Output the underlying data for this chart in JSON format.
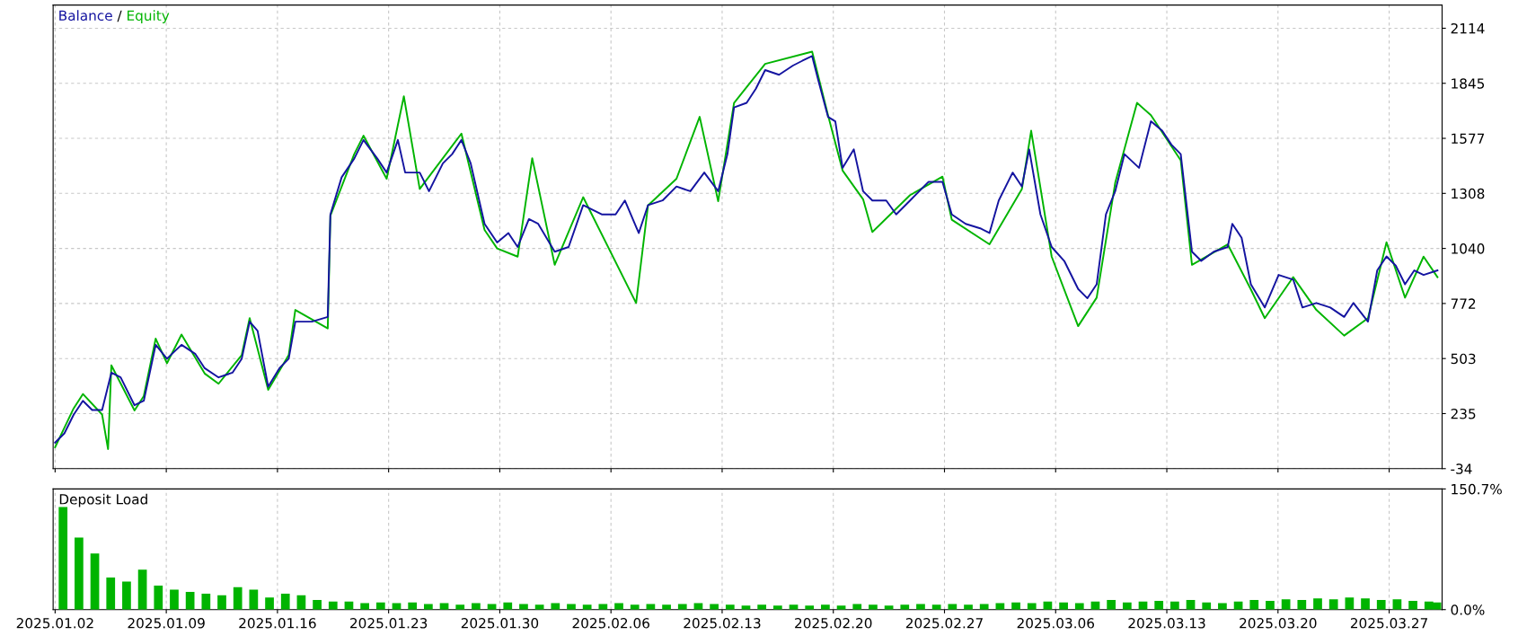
{
  "chart_data": [
    {
      "type": "line",
      "legend": "top left",
      "grid": true,
      "tick_labels": "y",
      "annotations": [
        "/"
      ],
      "xlim": [
        "2025-01-01T21:00",
        "2025-03-30T08:00"
      ],
      "xticks": [
        {
          "value": "2025-01-02",
          "label": null
        },
        {
          "value": "2025-01-09",
          "label": null
        },
        {
          "value": "2025-01-16",
          "label": null
        },
        {
          "value": "2025-01-23",
          "label": null
        },
        {
          "value": "2025-01-30",
          "label": null
        },
        {
          "value": "2025-02-06",
          "label": null
        },
        {
          "value": "2025-02-13",
          "label": null
        },
        {
          "value": "2025-02-20",
          "label": null
        },
        {
          "value": "2025-02-27",
          "label": null
        },
        {
          "value": "2025-03-06",
          "label": null
        },
        {
          "value": "2025-03-13",
          "label": null
        },
        {
          "value": "2025-03-20",
          "label": null
        },
        {
          "value": "2025-03-27",
          "label": null
        }
      ],
      "ylim": [
        -34,
        2227
      ],
      "yticks": [
        -34,
        {
          "value": 234.5,
          "label": "235"
        },
        503,
        {
          "value": 771.5,
          "label": "772"
        },
        1040,
        {
          "value": 1308.5,
          "label": "1308"
        },
        1577,
        {
          "value": 1845.5,
          "label": "1845"
        },
        2114
      ],
      "series": [
        {
          "name": "Balance",
          "color": "#1414a0",
          "x": [
            "2025-01-02T00:00",
            "2025-01-02T14:00",
            "2025-01-03T04:00",
            "2025-01-03T18:00",
            "2025-01-04T08:00",
            "2025-01-04T23:00",
            "2025-01-05T13:00",
            "2025-01-06T03:00",
            "2025-01-07T00:00",
            "2025-01-07T14:00",
            "2025-01-08T08:00",
            "2025-01-09T01:00",
            "2025-01-09T23:00",
            "2025-01-10T20:00",
            "2025-01-11T10:00",
            "2025-01-12T07:00",
            "2025-01-13T04:00",
            "2025-01-13T18:00",
            "2025-01-14T06:00",
            "2025-01-14T18:00",
            "2025-01-15T10:00",
            "2025-01-16T03:00",
            "2025-01-16T17:00",
            "2025-01-17T03:00",
            "2025-01-18T04:00",
            "2025-01-19T04:00",
            "2025-01-19T08:00",
            "2025-01-20T01:00",
            "2025-01-20T20:00",
            "2025-01-21T10:00",
            "2025-01-22T07:00",
            "2025-01-22T21:00",
            "2025-01-23T14:00",
            "2025-01-24T01:00",
            "2025-01-24T23:00",
            "2025-01-25T13:00",
            "2025-01-26T10:00",
            "2025-01-27T00:00",
            "2025-01-27T14:00",
            "2025-01-28T04:00",
            "2025-01-29T01:00",
            "2025-01-29T20:00",
            "2025-01-30T13:00",
            "2025-01-31T03:00",
            "2025-01-31T20:00",
            "2025-02-01T10:00",
            "2025-02-02T11:00",
            "2025-02-03T08:00",
            "2025-02-04T06:00",
            "2025-02-05T10:00",
            "2025-02-06T07:00",
            "2025-02-06T21:00",
            "2025-02-07T18:00",
            "2025-02-08T08:00",
            "2025-02-09T06:00",
            "2025-02-10T03:00",
            "2025-02-11T00:00",
            "2025-02-11T21:00",
            "2025-02-12T18:00",
            "2025-02-13T08:00",
            "2025-02-13T18:00",
            "2025-02-14T13:00",
            "2025-02-15T03:00",
            "2025-02-15T17:00",
            "2025-02-16T14:00",
            "2025-02-17T11:00",
            "2025-02-18T01:00",
            "2025-02-18T16:00",
            "2025-02-19T01:00",
            "2025-02-19T16:00",
            "2025-02-20T03:00",
            "2025-02-20T14:00",
            "2025-02-21T07:00",
            "2025-02-21T21:00",
            "2025-02-22T11:00",
            "2025-02-23T08:00",
            "2025-02-23T23:00",
            "2025-02-24T20:00",
            "2025-02-26T00:00",
            "2025-02-26T21:00",
            "2025-02-27T11:00",
            "2025-02-28T08:00",
            "2025-03-01T06:00",
            "2025-03-01T20:00",
            "2025-03-02T10:00",
            "2025-03-03T07:00",
            "2025-03-03T21:00",
            "2025-03-04T08:00",
            "2025-03-05T01:00",
            "2025-03-05T18:00",
            "2025-03-06T13:00",
            "2025-03-07T10:00",
            "2025-03-08T00:00",
            "2025-03-08T14:00",
            "2025-03-09T04:00",
            "2025-03-09T18:00",
            "2025-03-10T08:00",
            "2025-03-11T06:00",
            "2025-03-12T00:00",
            "2025-03-12T17:00",
            "2025-03-13T07:00",
            "2025-03-13T21:00",
            "2025-03-14T14:00",
            "2025-03-15T04:00",
            "2025-03-15T23:00",
            "2025-03-16T20:00",
            "2025-03-17T03:00",
            "2025-03-17T17:00",
            "2025-03-18T07:00",
            "2025-03-19T04:00",
            "2025-03-20T01:00",
            "2025-03-20T23:00",
            "2025-03-21T13:00",
            "2025-03-22T10:00",
            "2025-03-23T07:00",
            "2025-03-24T04:00",
            "2025-03-24T18:00",
            "2025-03-25T16:00",
            "2025-03-26T06:00",
            "2025-03-26T20:00",
            "2025-03-27T10:00",
            "2025-03-28T00:00",
            "2025-03-28T14:00",
            "2025-03-29T04:00",
            "2025-03-30T01:00"
          ],
          "values": [
            93,
            138,
            229,
            297,
            252,
            252,
            434,
            411,
            275,
            297,
            570,
            502,
            570,
            525,
            456,
            411,
            434,
            502,
            683,
            638,
            366,
            456,
            502,
            683,
            683,
            706,
            1206,
            1387,
            1478,
            1569,
            1478,
            1410,
            1569,
            1410,
            1410,
            1319,
            1455,
            1500,
            1569,
            1455,
            1160,
            1069,
            1115,
            1047,
            1183,
            1160,
            1024,
            1047,
            1251,
            1206,
            1206,
            1274,
            1115,
            1251,
            1274,
            1342,
            1319,
            1410,
            1319,
            1500,
            1728,
            1750,
            1819,
            1910,
            1887,
            1932,
            1955,
            1978,
            1864,
            1682,
            1660,
            1433,
            1523,
            1319,
            1274,
            1274,
            1206,
            1274,
            1365,
            1365,
            1206,
            1160,
            1138,
            1115,
            1274,
            1410,
            1342,
            1523,
            1206,
            1047,
            979,
            842,
            797,
            865,
            1206,
            1319,
            1500,
            1433,
            1660,
            1614,
            1546,
            1500,
            1024,
            979,
            1024,
            1047,
            1160,
            1092,
            865,
            752,
            911,
            888,
            752,
            774,
            752,
            706,
            774,
            683,
            933,
            1001,
            956,
            865,
            933,
            911,
            933
          ]
        },
        {
          "name": "Equity",
          "color": "#00b400",
          "x": [
            "2025-01-02T00:00",
            "2025-01-03T04:00",
            "2025-01-03T18:00",
            "2025-01-04T23:00",
            "2025-01-05T08:00",
            "2025-01-05T13:00",
            "2025-01-07T00:00",
            "2025-01-07T14:00",
            "2025-01-08T08:00",
            "2025-01-09T01:00",
            "2025-01-09T23:00",
            "2025-01-11T10:00",
            "2025-01-12T07:00",
            "2025-01-13T18:00",
            "2025-01-14T06:00",
            "2025-01-15T10:00",
            "2025-01-16T17:00",
            "2025-01-17T03:00",
            "2025-01-19T04:00",
            "2025-01-19T08:00",
            "2025-01-20T20:00",
            "2025-01-21T10:00",
            "2025-01-22T21:00",
            "2025-01-23T23:00",
            "2025-01-24T23:00",
            "2025-01-27T14:00",
            "2025-01-29T01:00",
            "2025-01-29T20:00",
            "2025-01-31T03:00",
            "2025-02-01T01:00",
            "2025-02-02T11:00",
            "2025-02-04T06:00",
            "2025-02-07T14:00",
            "2025-02-08T08:00",
            "2025-02-10T03:00",
            "2025-02-11T14:00",
            "2025-02-12T18:00",
            "2025-02-13T18:00",
            "2025-02-15T17:00",
            "2025-02-18T16:00",
            "2025-02-19T16:00",
            "2025-02-20T14:00",
            "2025-02-21T21:00",
            "2025-02-22T11:00",
            "2025-02-24T20:00",
            "2025-02-26T21:00",
            "2025-02-27T11:00",
            "2025-03-01T20:00",
            "2025-03-03T21:00",
            "2025-03-04T11:00",
            "2025-03-05T18:00",
            "2025-03-07T10:00",
            "2025-03-08T14:00",
            "2025-03-09T18:00",
            "2025-03-11T03:00",
            "2025-03-12T00:00",
            "2025-03-13T21:00",
            "2025-03-14T14:00",
            "2025-03-16T20:00",
            "2025-03-18T07:00",
            "2025-03-19T04:00",
            "2025-03-20T23:00",
            "2025-03-22T10:00",
            "2025-03-24T04:00",
            "2025-03-25T16:00",
            "2025-03-26T20:00",
            "2025-03-28T00:00",
            "2025-03-29T04:00",
            "2025-03-30T01:00"
          ],
          "values": [
            70,
            260,
            330,
            230,
            61,
            470,
            250,
            320,
            600,
            480,
            620,
            430,
            380,
            520,
            700,
            350,
            520,
            740,
            650,
            1200,
            1500,
            1590,
            1380,
            1782,
            1330,
            1600,
            1130,
            1040,
            1000,
            1480,
            960,
            1290,
            774,
            1250,
            1380,
            1682,
            1270,
            1750,
            1940,
            2000,
            1690,
            1420,
            1280,
            1120,
            1300,
            1390,
            1180,
            1060,
            1330,
            1614,
            1000,
            661,
            800,
            1360,
            1750,
            1690,
            1470,
            960,
            1060,
            840,
            700,
            900,
            740,
            615,
            700,
            1070,
            800,
            1000,
            900
          ]
        }
      ]
    },
    {
      "type": "bar",
      "title": "Deposit Load",
      "grid": true,
      "xlim": [
        "2025-01-01T21:00",
        "2025-03-30T08:00"
      ],
      "xticks": [
        {
          "value": "2025-01-02",
          "label": "2025.01.02"
        },
        {
          "value": "2025-01-09",
          "label": "2025.01.09"
        },
        {
          "value": "2025-01-16",
          "label": "2025.01.16"
        },
        {
          "value": "2025-01-23",
          "label": "2025.01.23"
        },
        {
          "value": "2025-01-30",
          "label": "2025.01.30"
        },
        {
          "value": "2025-02-06",
          "label": "2025.02.06"
        },
        {
          "value": "2025-02-13",
          "label": "2025.02.13"
        },
        {
          "value": "2025-02-20",
          "label": "2025.02.20"
        },
        {
          "value": "2025-02-27",
          "label": "2025.02.27"
        },
        {
          "value": "2025-03-06",
          "label": "2025.03.06"
        },
        {
          "value": "2025-03-13",
          "label": "2025.03.13"
        },
        {
          "value": "2025-03-20",
          "label": "2025.03.20"
        },
        {
          "value": "2025-03-27",
          "label": "2025.03.27"
        }
      ],
      "ylim": [
        0,
        150.7
      ],
      "yticks": [
        {
          "value": 0,
          "label": "0.0%"
        },
        {
          "value": 150.7,
          "label": "150.7%"
        }
      ],
      "series": [
        {
          "color": "#00b400",
          "x": [
            "2025-01-02T12:00",
            "2025-01-03T12:00",
            "2025-01-04T12:00",
            "2025-01-05T12:00",
            "2025-01-06T12:00",
            "2025-01-07T12:00",
            "2025-01-08T12:00",
            "2025-01-09T12:00",
            "2025-01-10T12:00",
            "2025-01-11T12:00",
            "2025-01-12T12:00",
            "2025-01-13T12:00",
            "2025-01-14T12:00",
            "2025-01-15T12:00",
            "2025-01-16T12:00",
            "2025-01-17T12:00",
            "2025-01-18T12:00",
            "2025-01-19T12:00",
            "2025-01-20T12:00",
            "2025-01-21T12:00",
            "2025-01-22T12:00",
            "2025-01-23T12:00",
            "2025-01-24T12:00",
            "2025-01-25T12:00",
            "2025-01-26T12:00",
            "2025-01-27T12:00",
            "2025-01-28T12:00",
            "2025-01-29T12:00",
            "2025-01-30T12:00",
            "2025-01-31T12:00",
            "2025-02-01T12:00",
            "2025-02-02T12:00",
            "2025-02-03T12:00",
            "2025-02-04T12:00",
            "2025-02-05T12:00",
            "2025-02-06T12:00",
            "2025-02-07T12:00",
            "2025-02-08T12:00",
            "2025-02-09T12:00",
            "2025-02-10T12:00",
            "2025-02-11T12:00",
            "2025-02-12T12:00",
            "2025-02-13T12:00",
            "2025-02-14T12:00",
            "2025-02-15T12:00",
            "2025-02-16T12:00",
            "2025-02-17T12:00",
            "2025-02-18T12:00",
            "2025-02-19T12:00",
            "2025-02-20T12:00",
            "2025-02-21T12:00",
            "2025-02-22T12:00",
            "2025-02-23T12:00",
            "2025-02-24T12:00",
            "2025-02-25T12:00",
            "2025-02-26T12:00",
            "2025-02-27T12:00",
            "2025-02-28T12:00",
            "2025-03-01T12:00",
            "2025-03-02T12:00",
            "2025-03-03T12:00",
            "2025-03-04T12:00",
            "2025-03-05T12:00",
            "2025-03-06T12:00",
            "2025-03-07T12:00",
            "2025-03-08T12:00",
            "2025-03-09T12:00",
            "2025-03-10T12:00",
            "2025-03-11T12:00",
            "2025-03-12T12:00",
            "2025-03-13T12:00",
            "2025-03-14T12:00",
            "2025-03-15T12:00",
            "2025-03-16T12:00",
            "2025-03-17T12:00",
            "2025-03-18T12:00",
            "2025-03-19T12:00",
            "2025-03-20T12:00",
            "2025-03-21T12:00",
            "2025-03-22T12:00",
            "2025-03-23T12:00",
            "2025-03-24T12:00",
            "2025-03-25T12:00",
            "2025-03-26T12:00",
            "2025-03-27T12:00",
            "2025-03-28T12:00",
            "2025-03-29T12:00",
            "2025-03-30T00:00"
          ],
          "values": [
            128,
            90,
            70,
            40,
            35,
            50,
            30,
            25,
            22,
            20,
            18,
            28,
            25,
            15,
            20,
            18,
            12,
            10,
            10,
            8,
            9,
            8,
            9,
            7,
            8,
            6,
            8,
            7,
            9,
            7,
            6,
            8,
            7,
            6,
            7,
            8,
            6,
            7,
            6,
            7,
            8,
            7,
            6,
            5,
            6,
            5,
            6,
            5,
            6,
            5,
            7,
            6,
            5,
            6,
            7,
            6,
            7,
            6,
            7,
            8,
            9,
            8,
            10,
            9,
            8,
            10,
            12,
            9,
            10,
            11,
            10,
            12,
            9,
            8,
            10,
            12,
            11,
            13,
            12,
            14,
            13,
            15,
            14,
            12,
            13,
            11,
            10,
            9
          ]
        }
      ]
    }
  ]
}
